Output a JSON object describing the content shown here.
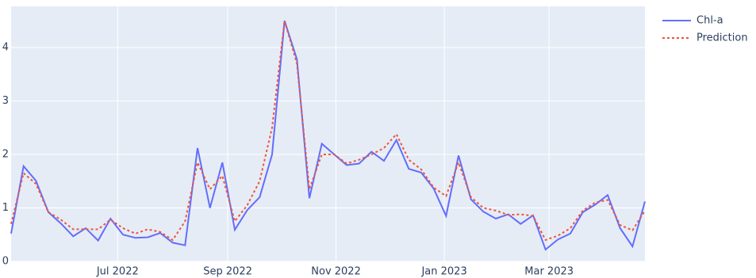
{
  "chart_data": {
    "type": "line",
    "x": [
      "2022-05-02",
      "2022-05-09",
      "2022-05-16",
      "2022-05-23",
      "2022-05-30",
      "2022-06-06",
      "2022-06-13",
      "2022-06-20",
      "2022-06-27",
      "2022-07-04",
      "2022-07-11",
      "2022-07-18",
      "2022-07-25",
      "2022-08-01",
      "2022-08-08",
      "2022-08-15",
      "2022-08-22",
      "2022-08-29",
      "2022-09-05",
      "2022-09-12",
      "2022-09-19",
      "2022-09-26",
      "2022-10-03",
      "2022-10-10",
      "2022-10-17",
      "2022-10-24",
      "2022-10-31",
      "2022-11-07",
      "2022-11-14",
      "2022-11-21",
      "2022-11-28",
      "2022-12-05",
      "2022-12-12",
      "2022-12-19",
      "2022-12-26",
      "2023-01-02",
      "2023-01-09",
      "2023-01-16",
      "2023-01-23",
      "2023-01-30",
      "2023-02-06",
      "2023-02-13",
      "2023-02-20",
      "2023-02-27",
      "2023-03-06",
      "2023-03-13",
      "2023-03-20",
      "2023-03-27",
      "2023-04-03",
      "2023-04-10",
      "2023-04-17",
      "2023-04-24"
    ],
    "series": [
      {
        "name": "Chl-a",
        "color": "#636efa",
        "dash": "solid",
        "values": [
          0.52,
          1.78,
          1.51,
          0.92,
          0.71,
          0.47,
          0.62,
          0.39,
          0.8,
          0.5,
          0.44,
          0.45,
          0.53,
          0.35,
          0.3,
          2.12,
          1.0,
          1.85,
          0.59,
          0.96,
          1.2,
          2.0,
          4.5,
          3.78,
          1.18,
          2.2,
          2.0,
          1.8,
          1.83,
          2.05,
          1.88,
          2.27,
          1.73,
          1.66,
          1.36,
          0.85,
          1.98,
          1.16,
          0.93,
          0.8,
          0.88,
          0.7,
          0.86,
          0.22,
          0.41,
          0.52,
          0.92,
          1.06,
          1.24,
          0.62,
          0.28,
          1.12
        ]
      },
      {
        "name": "Prediction",
        "color": "#ef553b",
        "dash": "dot",
        "values": [
          0.7,
          1.65,
          1.45,
          0.92,
          0.78,
          0.6,
          0.6,
          0.6,
          0.78,
          0.62,
          0.52,
          0.6,
          0.55,
          0.4,
          0.75,
          1.85,
          1.35,
          1.6,
          0.75,
          1.05,
          1.5,
          2.5,
          4.5,
          3.7,
          1.35,
          2.0,
          2.0,
          1.83,
          1.9,
          2.0,
          2.12,
          2.38,
          1.9,
          1.72,
          1.38,
          1.22,
          1.85,
          1.2,
          1.0,
          0.95,
          0.87,
          0.88,
          0.85,
          0.4,
          0.48,
          0.62,
          0.95,
          1.1,
          1.15,
          0.68,
          0.58,
          0.95
        ]
      }
    ],
    "xlim": [
      "2022-05-02",
      "2023-04-24"
    ],
    "xticks": [
      {
        "value": "2022-07-01",
        "label": "Jul 2022"
      },
      {
        "value": "2022-09-01",
        "label": "Sep 2022"
      },
      {
        "value": "2022-11-01",
        "label": "Nov 2022"
      },
      {
        "value": "2023-01-01",
        "label": "Jan 2023"
      },
      {
        "value": "2023-03-01",
        "label": "Mar 2023"
      }
    ],
    "ylim": [
      0,
      4.77
    ],
    "yticks": [
      0,
      1,
      2,
      3,
      4
    ],
    "grid": true,
    "legend": "right"
  }
}
